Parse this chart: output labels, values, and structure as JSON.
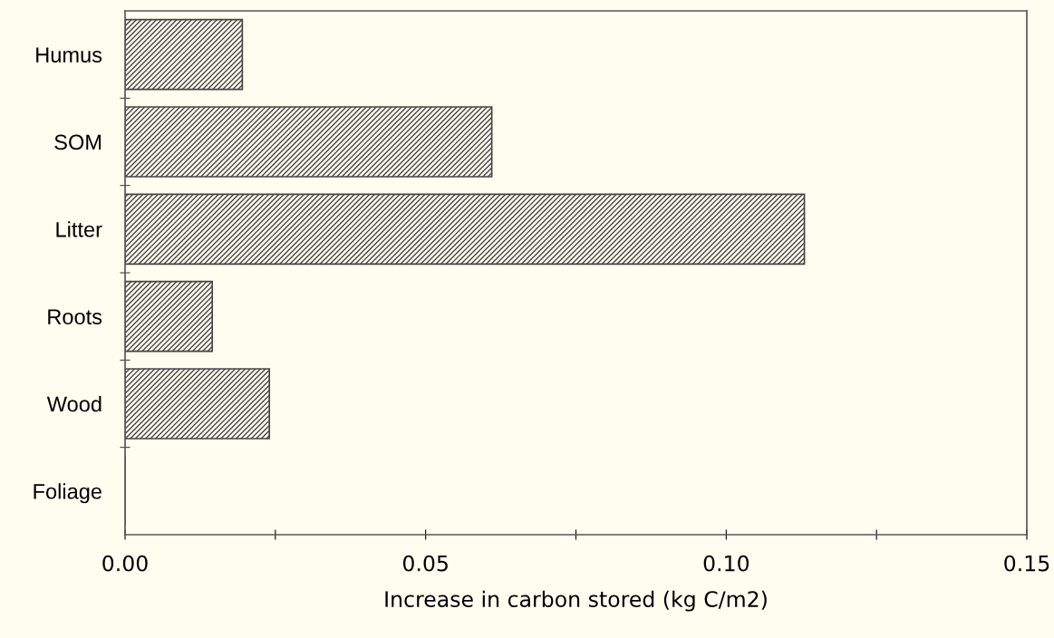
{
  "chart_data": {
    "type": "bar",
    "orientation": "horizontal",
    "xlabel": "Increase in carbon stored (kg C/m2)",
    "categories": [
      "Humus",
      "SOM",
      "Litter",
      "Roots",
      "Wood",
      "Foliage"
    ],
    "values": [
      0.0195,
      0.061,
      0.113,
      0.0145,
      0.024,
      0
    ],
    "color": "#444444",
    "xlim": [
      0,
      0.15
    ],
    "xticks": [
      {
        "value": 0,
        "label": "0.00"
      },
      {
        "value": 0.025,
        "label": null
      },
      {
        "value": 0.05,
        "label": "0.05"
      },
      {
        "value": 0.075,
        "label": null
      },
      {
        "value": 0.1,
        "label": "0.10"
      },
      {
        "value": 0.125,
        "label": null
      },
      {
        "value": 0.15,
        "label": "0.15"
      }
    ],
    "grid": false
  }
}
